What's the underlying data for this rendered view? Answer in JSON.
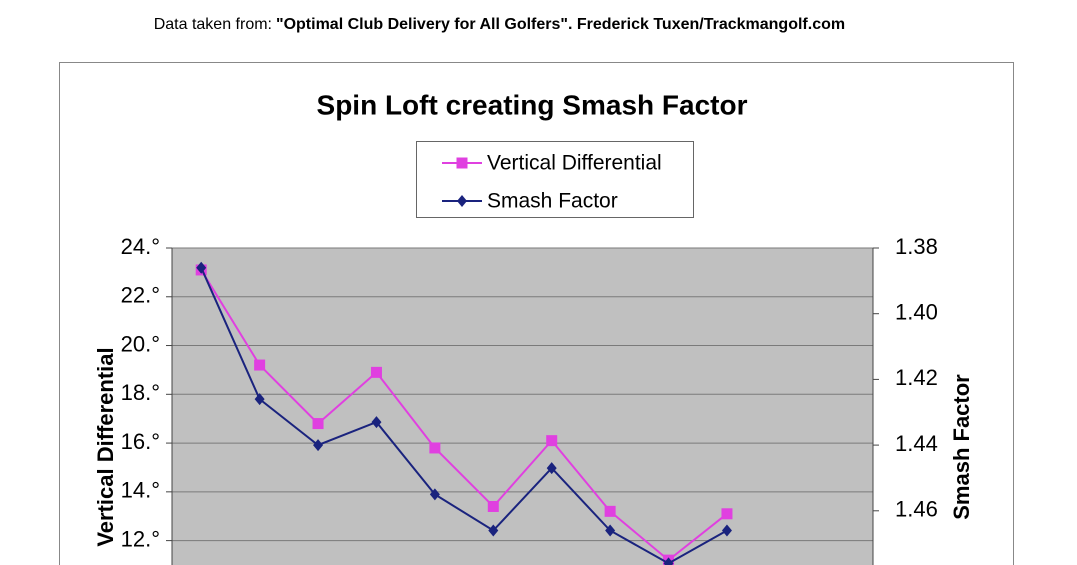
{
  "chart_data": {
    "type": "line",
    "note": [
      "Data taken from:",
      "\"Optimal Club Delivery for All Golfers\". Frederick Tuxen/Trackmangolf.com"
    ],
    "title": "Spin Loft creating Smash Factor",
    "y_label": "Vertical Differential",
    "y2_label": "Smash Factor",
    "categories": [
      null,
      null,
      null,
      null,
      null,
      null,
      null,
      null,
      null,
      null,
      null,
      null
    ],
    "series": [
      {
        "name": "Vertical Differential",
        "color": "#e040e0",
        "marker": "square",
        "values": [
          23.1,
          19.2,
          16.8,
          18.9,
          15.8,
          13.4,
          16.1,
          13.2,
          11.2,
          13.1,
          null,
          null
        ]
      },
      {
        "name": "Smash Factor",
        "color": "#1a237e",
        "marker": "diamond",
        "axis": "y2",
        "values": [
          1.386,
          1.426,
          1.44,
          1.433,
          1.455,
          1.466,
          1.447,
          1.466,
          1.476,
          1.466,
          null,
          null
        ]
      }
    ],
    "ylim": [
      11,
      24
    ],
    "yticks": [
      {
        "value": 12,
        "label": "12.°"
      },
      {
        "value": 14,
        "label": "14.°"
      },
      {
        "value": 16,
        "label": "16.°"
      },
      {
        "value": 18,
        "label": "18.°"
      },
      {
        "value": 20,
        "label": "20.°"
      },
      {
        "value": 22,
        "label": "22.°"
      },
      {
        "value": 24,
        "label": "24.°"
      }
    ],
    "y2lim": [
      1.4765,
      1.38
    ],
    "y2ticks": [
      1.38,
      {
        "value": 1.4,
        "label": "1.40"
      },
      1.42,
      1.44,
      1.46
    ],
    "grid": true,
    "plot_background": "#c0c0c0"
  }
}
